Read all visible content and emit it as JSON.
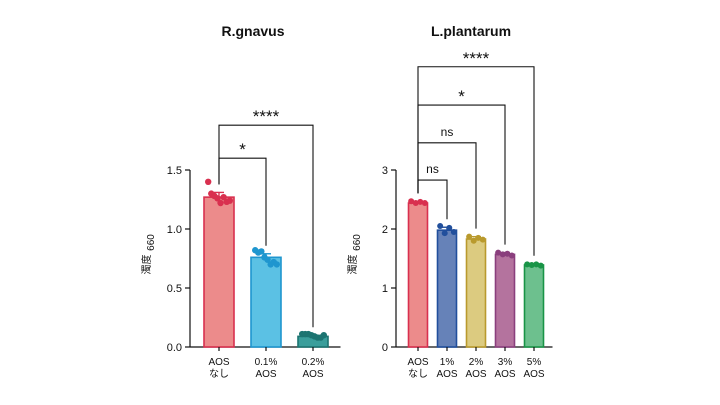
{
  "chart_data": [
    {
      "type": "bar",
      "title": "R.gnavus",
      "ylabel": "濁度",
      "ylabel_sub": "660",
      "ylim": [
        0,
        1.5
      ],
      "yticks": [
        "0.0",
        "0.5",
        "1.0",
        "1.5"
      ],
      "categories": [
        {
          "line1": "AOS",
          "line2": "なし"
        },
        {
          "line1": "0.1%",
          "line2": "AOS"
        },
        {
          "line1": "0.2%",
          "line2": "AOS"
        }
      ],
      "values": [
        1.27,
        0.76,
        0.09
      ],
      "errors": [
        0.04,
        0.03,
        0.01
      ],
      "bar_fill": [
        "#ec8b8b",
        "#5bc1e4",
        "#3a9e9b"
      ],
      "bar_stroke": [
        "#d9304f",
        "#1f96cf",
        "#1c7471"
      ],
      "points": [
        [
          1.4,
          1.3,
          1.28,
          1.26,
          1.22,
          1.27,
          1.23,
          1.24
        ],
        [
          0.82,
          0.8,
          0.81,
          0.76,
          0.74,
          0.7,
          0.72,
          0.7
        ],
        [
          0.11,
          0.11,
          0.11,
          0.1,
          0.09,
          0.08,
          0.08,
          0.1
        ]
      ],
      "comparisons": [
        {
          "from": 0,
          "to": 1,
          "label": "*",
          "level": 1.6
        },
        {
          "from": 0,
          "to": 2,
          "label": "****",
          "level": 1.88
        }
      ]
    },
    {
      "type": "bar",
      "title": "L.plantarum",
      "ylabel": "濁度",
      "ylabel_sub": "660",
      "ylim": [
        0,
        3
      ],
      "yticks": [
        "0",
        "1",
        "2",
        "3"
      ],
      "categories": [
        {
          "line1": "AOS",
          "line2": "なし"
        },
        {
          "line1": "1%",
          "line2": "AOS"
        },
        {
          "line1": "2%",
          "line2": "AOS"
        },
        {
          "line1": "3%",
          "line2": "AOS"
        },
        {
          "line1": "5%",
          "line2": "AOS"
        }
      ],
      "values": [
        2.44,
        1.98,
        1.83,
        1.57,
        1.39
      ],
      "errors": [
        0.03,
        0.05,
        0.04,
        0.03,
        0.02
      ],
      "bar_fill": [
        "#ec8b8b",
        "#6682b8",
        "#dccb80",
        "#b4739e",
        "#6dc08e"
      ],
      "bar_stroke": [
        "#d9304f",
        "#214f9c",
        "#b99a2d",
        "#8a3f7d",
        "#199447"
      ],
      "points": [
        [
          2.47,
          2.44,
          2.46,
          2.44
        ],
        [
          2.05,
          1.93,
          2.02,
          1.95
        ],
        [
          1.87,
          1.8,
          1.85,
          1.82
        ],
        [
          1.6,
          1.57,
          1.58,
          1.55
        ],
        [
          1.4,
          1.39,
          1.4,
          1.38
        ]
      ],
      "comparisons": [
        {
          "from": 0,
          "to": 1,
          "label": "ns",
          "level": 2.83
        },
        {
          "from": 0,
          "to": 2,
          "label": "ns",
          "level": 3.46
        },
        {
          "from": 0,
          "to": 3,
          "label": "*",
          "level": 4.1
        },
        {
          "from": 0,
          "to": 4,
          "label": "****",
          "level": 4.75
        }
      ]
    }
  ]
}
